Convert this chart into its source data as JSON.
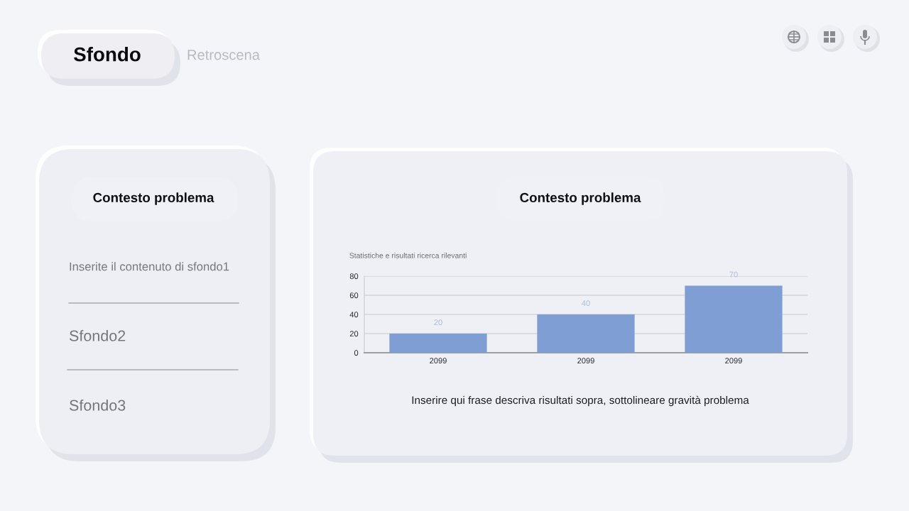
{
  "chart_data": {
    "type": "bar",
    "title": "Statistiche e risultati ricerca rilevanti",
    "categories": [
      "2099",
      "2099",
      "2099"
    ],
    "values": [
      20,
      40,
      70
    ],
    "color": "#7f9fd4",
    "ylim": [
      0,
      80
    ],
    "yticks": [
      0,
      20,
      40,
      60,
      80
    ],
    "grid": "y",
    "data_labels": true,
    "annotations": [
      "Sfondo",
      "Retroscena",
      "Contesto problema",
      "Inserite il contenuto di sfondo1",
      "Sfondo2",
      "Sfondo3",
      "Contesto problema",
      "Inserire qui frase descriva risultati sopra, sottolineare gravità problema"
    ]
  }
}
